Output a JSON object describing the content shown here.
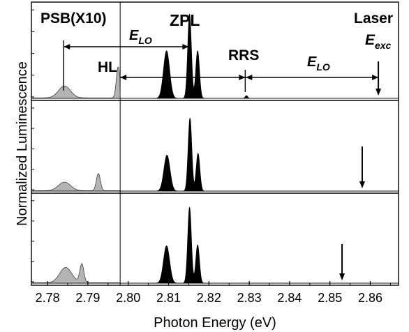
{
  "chart_data": {
    "type": "line",
    "xlabel": "Photon Energy (eV)",
    "ylabel": "Normalized Luminescence",
    "xlim": [
      2.776,
      2.867
    ],
    "x_ticks": [
      "2.78",
      "2.79",
      "2.80",
      "2.81",
      "2.82",
      "2.83",
      "2.84",
      "2.85",
      "2.86"
    ],
    "x_tick_values": [
      2.78,
      2.79,
      2.8,
      2.81,
      2.82,
      2.83,
      2.84,
      2.85,
      2.86
    ],
    "psb_region": [
      2.776,
      2.798
    ],
    "annotations": {
      "psb": "PSB(X10)",
      "zpl": "ZPL",
      "laser": "Laser",
      "hl": "HL",
      "rrs": "RRS",
      "e_lo": "E",
      "e_lo_sub": "LO",
      "e_exc": "E",
      "e_exc_sub": "exc"
    },
    "marker_positions": {
      "hl_x": 2.798,
      "zpl_x": 2.815,
      "rrs_x": 2.829,
      "psb_x": 2.784
    },
    "series": [
      {
        "panel": 1,
        "laser_energy": 2.862,
        "peaks": [
          {
            "center": 2.8095,
            "height": 0.52,
            "width": 0.00075
          },
          {
            "center": 2.8152,
            "height": 0.92,
            "width": 0.00045
          },
          {
            "center": 2.8172,
            "height": 0.52,
            "width": 0.00045
          },
          {
            "center": 2.8293,
            "height": 0.03,
            "width": 0.0003
          }
        ],
        "psb_peaks": [
          {
            "center": 2.7842,
            "height": 0.13,
            "width": 0.0015
          },
          {
            "center": 2.7975,
            "height": 0.34,
            "width": 0.00045
          }
        ]
      },
      {
        "panel": 2,
        "laser_energy": 2.858,
        "peaks": [
          {
            "center": 2.8096,
            "height": 0.42,
            "width": 0.00075
          },
          {
            "center": 2.8153,
            "height": 0.85,
            "width": 0.00045
          },
          {
            "center": 2.8173,
            "height": 0.44,
            "width": 0.00045
          }
        ],
        "psb_peaks": [
          {
            "center": 2.7842,
            "height": 0.1,
            "width": 0.0015
          },
          {
            "center": 2.7926,
            "height": 0.2,
            "width": 0.0005
          }
        ]
      },
      {
        "panel": 3,
        "laser_energy": 2.853,
        "peaks": [
          {
            "center": 2.8095,
            "height": 0.44,
            "width": 0.00075
          },
          {
            "center": 2.8152,
            "height": 0.89,
            "width": 0.00045
          },
          {
            "center": 2.8172,
            "height": 0.45,
            "width": 0.00045
          }
        ],
        "psb_peaks": [
          {
            "center": 2.7845,
            "height": 0.18,
            "width": 0.0015
          },
          {
            "center": 2.7885,
            "height": 0.22,
            "width": 0.0005
          }
        ]
      }
    ],
    "colors": {
      "zpl_fill": "#000000",
      "psb_fill": "#b4b4b4",
      "axis": "#000000"
    }
  }
}
